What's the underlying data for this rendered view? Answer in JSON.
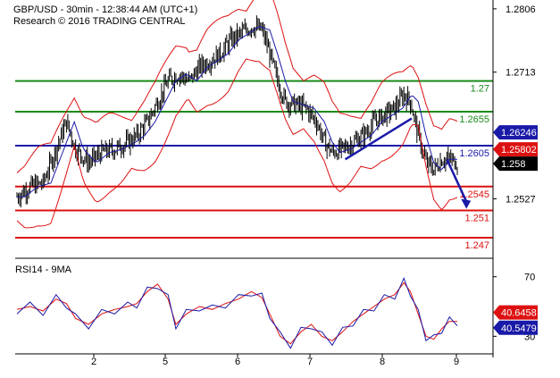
{
  "header": {
    "line1": "GBP/USD - 30min - 12:38:44 AM (UTC+1)",
    "line2": "Research © 2016 TRADING CENTRAL"
  },
  "chart_data": {
    "type": "candlestick",
    "instrument": "GBP/USD",
    "timeframe": "30min",
    "price_axis": {
      "ylim": [
        1.2445,
        1.2815
      ],
      "tick_labels": [
        "1.2806",
        "1.2713",
        "1.2527"
      ]
    },
    "x_tick_labels": [
      "2",
      "5",
      "6",
      "7",
      "8",
      "9"
    ],
    "horizontal_levels": [
      {
        "label": "1.27",
        "value": 1.27,
        "color": "#1a8a1a"
      },
      {
        "label": "1.2655",
        "value": 1.2655,
        "color": "#1a8a1a"
      },
      {
        "label": "1.2605",
        "value": 1.2605,
        "color": "#1a1aa8"
      },
      {
        "label": "1.2545",
        "value": 1.2545,
        "color": "#dd1111"
      },
      {
        "label": "1.251",
        "value": 1.251,
        "color": "#dd1111"
      },
      {
        "label": "1.247",
        "value": 1.247,
        "color": "#dd1111"
      }
    ],
    "price_boxes": [
      {
        "label": "1.26246",
        "value": 1.26246,
        "color": "#1a1aa8"
      },
      {
        "label": "1.25802",
        "value": 1.25802,
        "color": "#dd1111"
      },
      {
        "label": "1.258",
        "value": 1.258,
        "color": "#000000"
      }
    ],
    "close_path": [
      [
        0,
        1.253
      ],
      [
        10,
        1.2545
      ],
      [
        20,
        1.255
      ],
      [
        30,
        1.26
      ],
      [
        38,
        1.264
      ],
      [
        45,
        1.26
      ],
      [
        55,
        1.258
      ],
      [
        65,
        1.2595
      ],
      [
        75,
        1.26
      ],
      [
        85,
        1.261
      ],
      [
        92,
        1.262
      ],
      [
        100,
        1.264
      ],
      [
        108,
        1.267
      ],
      [
        116,
        1.27
      ],
      [
        124,
        1.271
      ],
      [
        132,
        1.27
      ],
      [
        140,
        1.272
      ],
      [
        148,
        1.273
      ],
      [
        156,
        1.274
      ],
      [
        164,
        1.276
      ],
      [
        172,
        1.277
      ],
      [
        180,
        1.278
      ],
      [
        188,
        1.2775
      ],
      [
        194,
        1.274
      ],
      [
        200,
        1.27
      ],
      [
        206,
        1.267
      ],
      [
        214,
        1.2665
      ],
      [
        222,
        1.266
      ],
      [
        230,
        1.264
      ],
      [
        236,
        1.261
      ],
      [
        242,
        1.2595
      ],
      [
        250,
        1.26
      ],
      [
        258,
        1.261
      ],
      [
        266,
        1.262
      ],
      [
        274,
        1.264
      ],
      [
        282,
        1.265
      ],
      [
        290,
        1.266
      ],
      [
        297,
        1.268
      ],
      [
        302,
        1.267
      ],
      [
        308,
        1.262
      ],
      [
        314,
        1.258
      ],
      [
        320,
        1.257
      ],
      [
        326,
        1.2585
      ],
      [
        332,
        1.2585
      ],
      [
        338,
        1.258
      ]
    ],
    "support_trendline": [
      [
        252,
        1.2585
      ],
      [
        303,
        1.2645
      ]
    ],
    "forecast_arrow": [
      [
        330,
        1.2585
      ],
      [
        345,
        1.2515
      ]
    ],
    "rsi": {
      "label": "RSI14 - 9MA",
      "ylim": [
        20,
        80
      ],
      "tick_labels": [
        "70",
        "30"
      ],
      "boxes": [
        {
          "label": "40.6458",
          "value": 40.6458,
          "color": "#dd1111"
        },
        {
          "label": "40.5479",
          "value": 40.5479,
          "color": "#1a1aa8"
        }
      ],
      "path": [
        [
          0,
          48
        ],
        [
          10,
          50
        ],
        [
          20,
          47
        ],
        [
          30,
          55
        ],
        [
          38,
          52
        ],
        [
          45,
          42
        ],
        [
          55,
          38
        ],
        [
          65,
          45
        ],
        [
          75,
          48
        ],
        [
          85,
          50
        ],
        [
          92,
          52
        ],
        [
          100,
          60
        ],
        [
          108,
          65
        ],
        [
          116,
          55
        ],
        [
          122,
          38
        ],
        [
          130,
          45
        ],
        [
          140,
          50
        ],
        [
          150,
          48
        ],
        [
          160,
          52
        ],
        [
          170,
          55
        ],
        [
          180,
          60
        ],
        [
          188,
          56
        ],
        [
          194,
          45
        ],
        [
          202,
          30
        ],
        [
          210,
          25
        ],
        [
          218,
          33
        ],
        [
          226,
          38
        ],
        [
          234,
          30
        ],
        [
          242,
          27
        ],
        [
          250,
          33
        ],
        [
          258,
          40
        ],
        [
          266,
          45
        ],
        [
          274,
          50
        ],
        [
          282,
          55
        ],
        [
          290,
          58
        ],
        [
          297,
          66
        ],
        [
          302,
          60
        ],
        [
          308,
          45
        ],
        [
          314,
          30
        ],
        [
          320,
          28
        ],
        [
          326,
          35
        ],
        [
          332,
          40
        ],
        [
          338,
          40
        ]
      ]
    }
  }
}
